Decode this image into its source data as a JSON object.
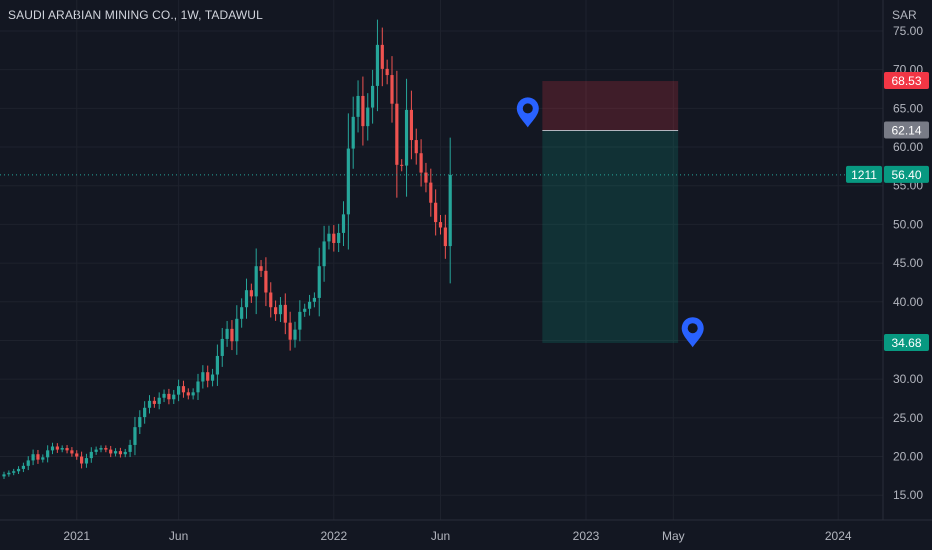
{
  "header": {
    "title": "SAUDI ARABIAN MINING CO., 1W, TADAWUL"
  },
  "axis": {
    "currency": "SAR"
  },
  "chart_data": {
    "type": "candlestick",
    "title": "SAUDI ARABIAN MINING CO., 1W, TADAWUL",
    "y_unit": "SAR",
    "ylim": [
      11.8,
      79.0
    ],
    "y_ticks": [
      75,
      70,
      65,
      60,
      55,
      50,
      45,
      40,
      35,
      30,
      25,
      20,
      15
    ],
    "x_ticks": [
      {
        "label": "2021",
        "week": 15
      },
      {
        "label": "Jun",
        "week": 36
      },
      {
        "label": "2022",
        "week": 68
      },
      {
        "label": "Jun",
        "week": 90
      },
      {
        "label": "2023",
        "week": 120
      },
      {
        "label": "May",
        "week": 138
      },
      {
        "label": "2024",
        "week": 172
      }
    ],
    "closes": [
      17.7,
      17.9,
      18.1,
      18.4,
      18.8,
      19.5,
      20.3,
      19.6,
      19.9,
      20.8,
      21.3,
      20.9,
      21.1,
      20.8,
      20.4,
      20.0,
      19.1,
      19.8,
      20.6,
      20.9,
      21.1,
      20.9,
      20.4,
      20.7,
      20.3,
      20.6,
      21.5,
      23.8,
      25.1,
      26.3,
      27.2,
      26.8,
      27.6,
      28.1,
      27.4,
      28.0,
      29.1,
      28.3,
      27.9,
      28.3,
      29.7,
      30.9,
      29.8,
      30.6,
      33.0,
      35.2,
      36.5,
      34.9,
      37.8,
      39.3,
      41.5,
      40.7,
      44.6,
      44.0,
      41.2,
      39.3,
      38.4,
      39.6,
      37.3,
      35.1,
      36.4,
      38.7,
      39.1,
      40.0,
      40.5,
      44.6,
      47.8,
      48.8,
      47.6,
      48.9,
      51.3,
      59.8,
      63.9,
      66.6,
      62.7,
      65.1,
      67.9,
      73.2,
      70.1,
      69.3,
      65.6,
      57.7,
      57.6,
      64.8,
      60.9,
      59.2,
      56.7,
      55.4,
      52.8,
      50.3,
      49.6,
      47.2,
      56.4
    ],
    "current_price": 56.4,
    "current_volume_label": "1211",
    "price_tags": [
      {
        "value": 68.53,
        "label": "68.53",
        "color": "#f23645"
      },
      {
        "value": 62.14,
        "label": "62.14",
        "color": "#787b86"
      },
      {
        "value": 56.4,
        "label": "56.40",
        "color": "#089981"
      },
      {
        "value": 34.68,
        "label": "34.68",
        "color": "#089981"
      }
    ],
    "position_tool": {
      "type": "long",
      "entry": 62.14,
      "stop": 68.53,
      "target": 34.68,
      "start_week": 111,
      "end_week": 139
    },
    "markers": [
      {
        "name": "entry-marker",
        "week": 108,
        "price": 64.6
      },
      {
        "name": "target-marker",
        "week": 142,
        "price": 36.2
      }
    ],
    "colors": {
      "up": "#26a69a",
      "down": "#ef5350",
      "stop_zone": "#f23645",
      "target_zone": "#089981",
      "marker": "#2962ff"
    }
  }
}
